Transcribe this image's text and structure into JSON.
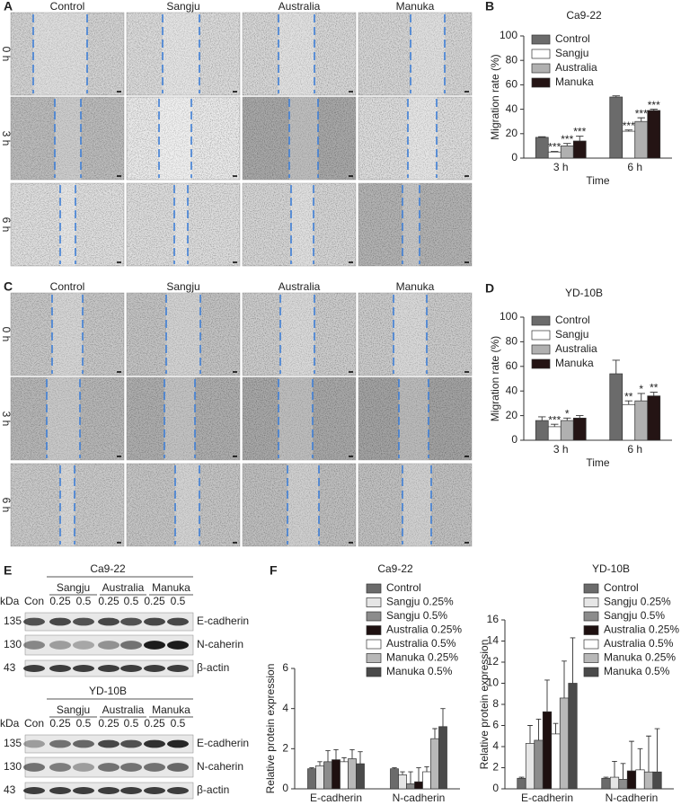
{
  "panel_labels": [
    "A",
    "B",
    "C",
    "D",
    "E",
    "F"
  ],
  "wound_healing": [
    {
      "columns": [
        "Control",
        "Sangju",
        "Australia",
        "Manuka"
      ],
      "rows": [
        "0 h",
        "3 h",
        "6 h"
      ]
    },
    {
      "columns": [
        "Control",
        "Sangju",
        "Australia",
        "Manuka"
      ],
      "rows": [
        "0 h",
        "3 h",
        "6 h"
      ]
    }
  ],
  "western_blot": [
    {
      "cell_line": "Ca9-22",
      "unit": "kDa",
      "groups": [
        "Sangju",
        "Australia",
        "Manuka"
      ],
      "lanes": [
        "Con",
        "0.25",
        "0.5",
        "0.25",
        "0.5",
        "0.25",
        "0.5"
      ],
      "bands": [
        {
          "kda": 135,
          "protein": "E-cadherin"
        },
        {
          "kda": 130,
          "protein": "N-caherin"
        },
        {
          "kda": 43,
          "protein": "β-actin"
        }
      ]
    },
    {
      "cell_line": "YD-10B",
      "unit": "kDa",
      "groups": [
        "Sangju",
        "Australia",
        "Manuka"
      ],
      "lanes": [
        "Con",
        "0.25",
        "0.5",
        "0.25",
        "0.5",
        "0.25",
        "0.5"
      ],
      "bands": [
        {
          "kda": 135,
          "protein": "E-cadherin"
        },
        {
          "kda": 130,
          "protein": "N-caherin"
        },
        {
          "kda": 43,
          "protein": "β-actin"
        }
      ]
    }
  ],
  "chart_data": [
    {
      "type": "bar",
      "title": "Ca9-22",
      "ylabel": "Migration rate (%)",
      "xlabel": "Time",
      "categories": [
        "3 h",
        "6 h"
      ],
      "ylim": [
        0,
        100
      ],
      "yticks": [
        0,
        20,
        40,
        60,
        80,
        100
      ],
      "legend": "upper left",
      "series": [
        {
          "name": "Control",
          "color": "#6b6b6b",
          "values": [
            17,
            50
          ],
          "errors": [
            0.5,
            1
          ],
          "stars": [
            null,
            null
          ]
        },
        {
          "name": "Sangju",
          "color": "#ffffff",
          "values": [
            5,
            22
          ],
          "errors": [
            0.5,
            1
          ],
          "stars": [
            "***",
            "***"
          ]
        },
        {
          "name": "Australia",
          "color": "#b0b0b0",
          "values": [
            10,
            30
          ],
          "errors": [
            2,
            3
          ],
          "stars": [
            "***",
            "***"
          ]
        },
        {
          "name": "Manuka",
          "color": "#241414",
          "values": [
            14,
            39
          ],
          "errors": [
            4,
            1
          ],
          "stars": [
            "***",
            "***"
          ]
        }
      ]
    },
    {
      "type": "bar",
      "title": "YD-10B",
      "ylabel": "Migration rate (%)",
      "xlabel": "Time",
      "categories": [
        "3 h",
        "6 h"
      ],
      "ylim": [
        0,
        100
      ],
      "yticks": [
        0,
        20,
        40,
        60,
        80,
        100
      ],
      "legend": "upper left",
      "series": [
        {
          "name": "Control",
          "color": "#6b6b6b",
          "values": [
            16,
            54
          ],
          "errors": [
            3,
            11
          ],
          "stars": [
            null,
            null
          ]
        },
        {
          "name": "Sangju",
          "color": "#ffffff",
          "values": [
            11,
            29
          ],
          "errors": [
            2,
            3
          ],
          "stars": [
            "***",
            "**"
          ]
        },
        {
          "name": "Australia",
          "color": "#b0b0b0",
          "values": [
            16,
            32
          ],
          "errors": [
            2,
            6
          ],
          "stars": [
            "*",
            "*"
          ]
        },
        {
          "name": "Manuka",
          "color": "#241414",
          "values": [
            18,
            36
          ],
          "errors": [
            2,
            3
          ],
          "stars": [
            null,
            "**"
          ]
        }
      ]
    },
    {
      "type": "bar",
      "title": "Ca9-22",
      "ylabel": "Relative protein expression",
      "categories": [
        "E-cadherin",
        "N-cadherin"
      ],
      "ylim": [
        0,
        6
      ],
      "yticks": [
        0,
        2,
        4,
        6
      ],
      "legend": "top",
      "series": [
        {
          "name": "Control",
          "color": "#6b6b6b",
          "values": [
            1.0,
            1.0
          ],
          "errors": [
            0.05,
            0.05
          ]
        },
        {
          "name": "Sangju 0.25%",
          "color": "#e6e6e6",
          "values": [
            1.15,
            0.7
          ],
          "errors": [
            0.2,
            0.15
          ]
        },
        {
          "name": "Sangju 0.5%",
          "color": "#8c8c8c",
          "values": [
            1.35,
            0.25
          ],
          "errors": [
            0.55,
            0.6
          ]
        },
        {
          "name": "Australia 0.25%",
          "color": "#1e1010",
          "values": [
            1.45,
            0.35
          ],
          "errors": [
            0.5,
            0.7
          ]
        },
        {
          "name": "Australia 0.5%",
          "color": "#ffffff",
          "values": [
            1.35,
            0.85
          ],
          "errors": [
            0.2,
            0.25
          ]
        },
        {
          "name": "Manuka 0.25%",
          "color": "#b8b8b8",
          "values": [
            1.5,
            2.5
          ],
          "errors": [
            0.45,
            0.5
          ]
        },
        {
          "name": "Manuka 0.5%",
          "color": "#4a4a4a",
          "values": [
            1.25,
            3.1
          ],
          "errors": [
            0.6,
            0.9
          ]
        }
      ]
    },
    {
      "type": "bar",
      "title": "YD-10B",
      "ylabel": "Relative protein expression",
      "categories": [
        "E-cadherin",
        "N-cadherin"
      ],
      "ylim": [
        0,
        16
      ],
      "yticks": [
        0,
        2,
        4,
        6,
        8,
        10,
        12,
        14,
        16
      ],
      "legend": "top",
      "series": [
        {
          "name": "Control",
          "color": "#6b6b6b",
          "values": [
            1,
            1
          ],
          "errors": [
            0.1,
            0.1
          ]
        },
        {
          "name": "Sangju 0.25%",
          "color": "#e6e6e6",
          "values": [
            4.3,
            1.1
          ],
          "errors": [
            1.7,
            1.5
          ]
        },
        {
          "name": "Sangju 0.5%",
          "color": "#8c8c8c",
          "values": [
            4.6,
            0.9
          ],
          "errors": [
            2,
            1.5
          ]
        },
        {
          "name": "Australia 0.25%",
          "color": "#1e1010",
          "values": [
            7.3,
            1.7
          ],
          "errors": [
            3,
            2.8
          ]
        },
        {
          "name": "Australia 0.5%",
          "color": "#ffffff",
          "values": [
            5.2,
            1.8
          ],
          "errors": [
            1,
            2
          ]
        },
        {
          "name": "Manuka 0.25%",
          "color": "#b8b8b8",
          "values": [
            8.6,
            1.6
          ],
          "errors": [
            3.5,
            3.4
          ]
        },
        {
          "name": "Manuka 0.5%",
          "color": "#4a4a4a",
          "values": [
            10,
            1.6
          ],
          "errors": [
            4.3,
            4.1
          ]
        }
      ]
    }
  ]
}
